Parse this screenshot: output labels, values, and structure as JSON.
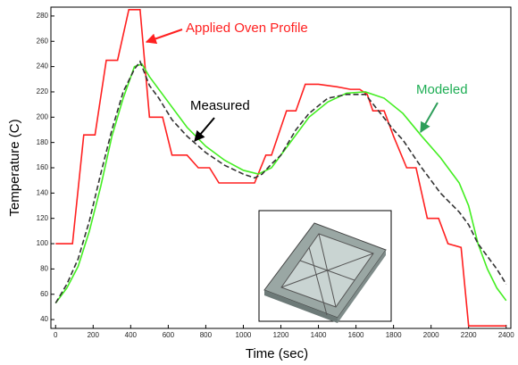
{
  "chart_data": {
    "type": "line",
    "x_label": "Time (sec)",
    "y_label": "Temperature (C)",
    "xlim": [
      -25,
      2425
    ],
    "ylim": [
      33,
      287
    ],
    "xticks": [
      0,
      200,
      400,
      600,
      800,
      1000,
      1200,
      1400,
      1600,
      1800,
      2000,
      2200,
      2400
    ],
    "yticks": [
      40,
      60,
      80,
      100,
      120,
      140,
      160,
      180,
      200,
      220,
      240,
      260,
      280
    ],
    "series": [
      {
        "name": "Applied Oven Profile",
        "color": "#ff2020",
        "dash": false,
        "x": [
          0,
          90,
          150,
          210,
          270,
          330,
          390,
          450,
          500,
          570,
          620,
          700,
          760,
          820,
          870,
          1060,
          1120,
          1150,
          1230,
          1280,
          1330,
          1400,
          1500,
          1570,
          1620,
          1660,
          1690,
          1750,
          1800,
          1870,
          1920,
          1980,
          2040,
          2090,
          2160,
          2200,
          2400
        ],
        "values": [
          100,
          100,
          186,
          186,
          245,
          245,
          285,
          285,
          200,
          200,
          170,
          170,
          160,
          160,
          148,
          148,
          170,
          170,
          205,
          205,
          226,
          226,
          224,
          222,
          222,
          218,
          205,
          205,
          185,
          160,
          160,
          120,
          120,
          100,
          97,
          35,
          35
        ]
      },
      {
        "name": "Modeled",
        "color": "#44ee22",
        "dash": false,
        "x": [
          0,
          60,
          120,
          180,
          240,
          300,
          360,
          420,
          460,
          500,
          600,
          700,
          800,
          900,
          1000,
          1080,
          1150,
          1250,
          1350,
          1450,
          1550,
          1650,
          1750,
          1850,
          1950,
          2050,
          2150,
          2200,
          2250,
          2300,
          2350,
          2400
        ],
        "values": [
          53,
          65,
          82,
          110,
          145,
          185,
          215,
          240,
          242,
          232,
          212,
          192,
          177,
          166,
          158,
          155,
          160,
          180,
          200,
          212,
          219,
          220,
          215,
          203,
          185,
          168,
          148,
          130,
          100,
          80,
          65,
          55
        ]
      },
      {
        "name": "Measured",
        "color": "#333333",
        "dash": true,
        "x": [
          0,
          60,
          120,
          180,
          240,
          300,
          360,
          420,
          450,
          500,
          550,
          620,
          700,
          800,
          900,
          1000,
          1060,
          1100,
          1150,
          1200,
          1280,
          1350,
          1450,
          1550,
          1650,
          1720,
          1800,
          1850,
          1950,
          2050,
          2150,
          2200,
          2250,
          2300,
          2350,
          2400
        ],
        "values": [
          53,
          68,
          88,
          118,
          155,
          190,
          220,
          238,
          244,
          225,
          215,
          198,
          185,
          172,
          162,
          155,
          152,
          155,
          163,
          170,
          190,
          203,
          215,
          218,
          218,
          205,
          190,
          182,
          160,
          140,
          125,
          115,
          100,
          90,
          80,
          68
        ]
      }
    ]
  }
}
